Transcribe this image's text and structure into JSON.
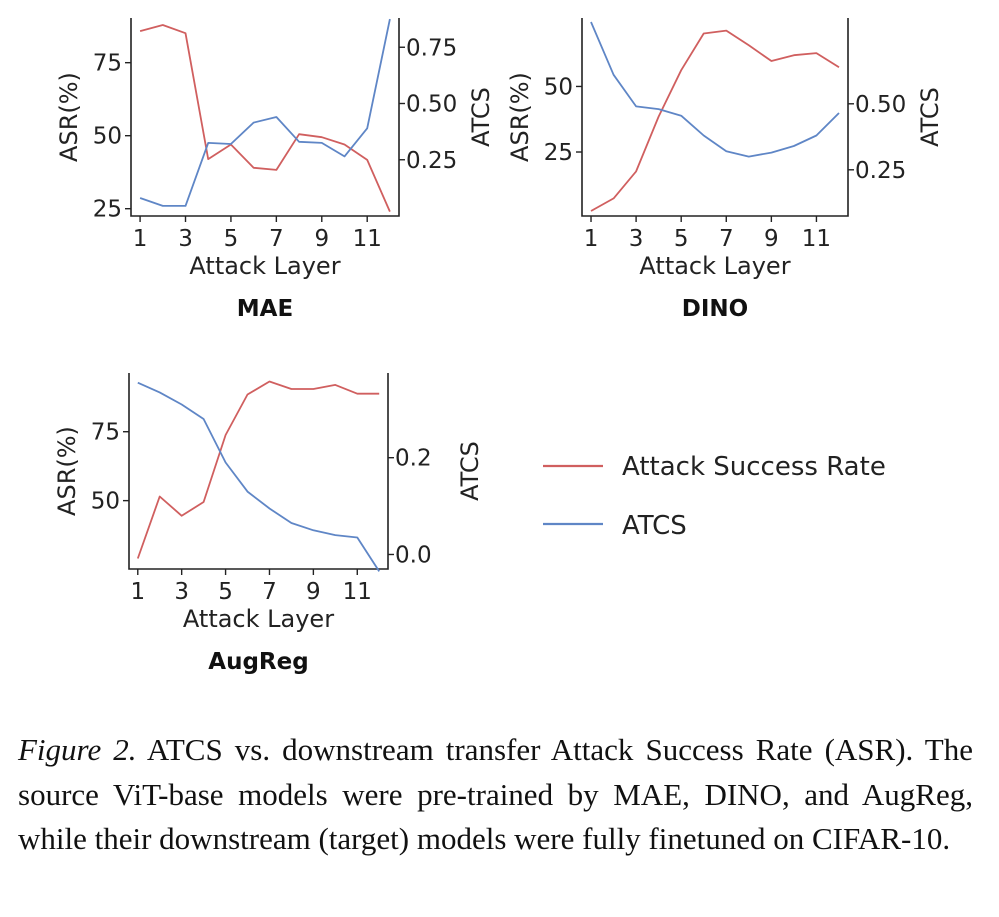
{
  "colors": {
    "asr": "#d05f5f",
    "atcs": "#5f86c6",
    "axis": "#222222"
  },
  "legend": {
    "asr": "Attack Success Rate",
    "atcs": "ATCS"
  },
  "caption": {
    "figure_label": "Figure 2.",
    "text": " ATCS vs.  downstream transfer Attack Success Rate (ASR). The source ViT-base models were pre-trained by MAE, DINO, and AugReg, while their downstream (target) models were fully finetuned on CIFAR-10."
  },
  "chart_data": [
    {
      "type": "line",
      "title": "MAE",
      "xlabel": "Attack Layer",
      "ylabel": "ASR(%)",
      "y2label": "ATCS",
      "x": [
        1,
        2,
        3,
        4,
        5,
        6,
        7,
        8,
        9,
        10,
        11,
        12
      ],
      "xticks": [
        "1",
        "3",
        "5",
        "7",
        "9",
        "11"
      ],
      "xlim": [
        0.6,
        12.4
      ],
      "ylim": [
        22.5,
        90.3
      ],
      "yticks": [
        "25",
        "50",
        "75"
      ],
      "y2lim": [
        0.0,
        0.88
      ],
      "y2ticks": [
        "0.25",
        "0.50",
        "0.75"
      ],
      "series": [
        {
          "name": "Attack Success Rate",
          "axis": "left",
          "values": [
            85.8,
            87.9,
            85.1,
            42,
            47,
            39,
            38.3,
            50.5,
            49.5,
            47,
            41.7,
            24
          ]
        },
        {
          "name": "ATCS",
          "axis": "right",
          "values": [
            0.08,
            0.045,
            0.045,
            0.325,
            0.32,
            0.415,
            0.44,
            0.33,
            0.325,
            0.265,
            0.39,
            0.875
          ]
        }
      ]
    },
    {
      "type": "line",
      "title": "DINO",
      "xlabel": "Attack Layer",
      "ylabel": "ASR(%)",
      "y2label": "ATCS",
      "x": [
        1,
        2,
        3,
        4,
        5,
        6,
        7,
        8,
        9,
        10,
        11,
        12
      ],
      "xticks": [
        "1",
        "3",
        "5",
        "7",
        "9",
        "11"
      ],
      "xlim": [
        0.6,
        12.4
      ],
      "ylim": [
        0.6,
        76.1
      ],
      "yticks": [
        "25",
        "50"
      ],
      "y2lim": [
        0.075,
        0.825
      ],
      "y2ticks": [
        "0.25",
        "0.50"
      ],
      "series": [
        {
          "name": "Attack Success Rate",
          "axis": "left",
          "values": [
            2.5,
            7.3,
            17.6,
            38.5,
            56.2,
            70.2,
            71.3,
            65.7,
            59.7,
            61.9,
            62.7,
            57.3
          ]
        },
        {
          "name": "ATCS",
          "axis": "right",
          "values": [
            0.81,
            0.61,
            0.49,
            0.48,
            0.455,
            0.38,
            0.32,
            0.3,
            0.315,
            0.34,
            0.38,
            0.465
          ]
        }
      ]
    },
    {
      "type": "line",
      "title": "AugReg",
      "xlabel": "Attack Layer",
      "ylabel": "ASR(%)",
      "y2label": "ATCS",
      "x": [
        1,
        2,
        3,
        4,
        5,
        6,
        7,
        8,
        9,
        10,
        11,
        12
      ],
      "xticks": [
        "1",
        "3",
        "5",
        "7",
        "9",
        "11"
      ],
      "xlim": [
        0.6,
        12.4
      ],
      "ylim": [
        25.2,
        96.3
      ],
      "yticks": [
        "50",
        "75"
      ],
      "y2lim": [
        -0.03,
        0.375
      ],
      "y2ticks": [
        "0.0",
        "0.2"
      ],
      "series": [
        {
          "name": "Attack Success Rate",
          "axis": "left",
          "values": [
            29,
            51.5,
            44.5,
            49.5,
            73.8,
            88.5,
            93.2,
            90.5,
            90.5,
            92,
            88.8,
            88.8
          ]
        },
        {
          "name": "ATCS",
          "axis": "right",
          "values": [
            0.355,
            0.335,
            0.31,
            0.28,
            0.19,
            0.13,
            0.095,
            0.065,
            0.05,
            0.04,
            0.035,
            -0.035
          ]
        }
      ]
    }
  ]
}
